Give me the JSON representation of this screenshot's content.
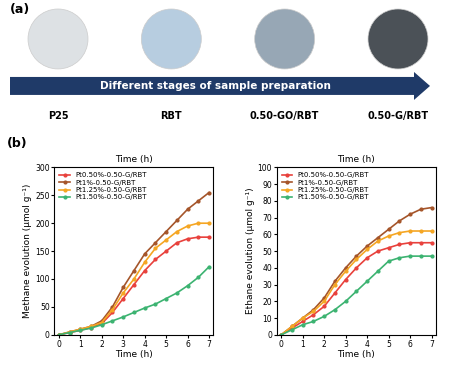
{
  "panel_labels": [
    "(a)",
    "(b)"
  ],
  "samples": {
    "arrow_text": "Different stages of sample preparation",
    "items": [
      {
        "label": "P25",
        "color": "#dde1e4"
      },
      {
        "label": "RBT",
        "color": "#b7cde0"
      },
      {
        "label": "0.50-GO/RBT",
        "color": "#97a7b5"
      },
      {
        "label": "0.50-G/RBT",
        "color": "#4b5157"
      }
    ]
  },
  "chart_data": [
    {
      "type": "line",
      "title": "Time (h)",
      "x_label": "Time (h)",
      "y_label": "Methane evolution (μmol g⁻¹)",
      "x": [
        0,
        0.5,
        1,
        1.5,
        2,
        2.5,
        3,
        3.5,
        4,
        4.5,
        5,
        5.5,
        6,
        6.5,
        7
      ],
      "xlim": [
        -0.2,
        7.2
      ],
      "xticks": [
        0,
        1,
        2,
        3,
        4,
        5,
        6,
        7
      ],
      "ylim": [
        0,
        300
      ],
      "yticks": [
        0,
        50,
        100,
        150,
        200,
        250,
        300
      ],
      "legend": "upper left",
      "marker": "o",
      "series": [
        {
          "name": "Pt0.50%-0.50-G/RBT",
          "color": "#e8413c",
          "values": [
            0,
            4,
            8,
            13,
            20,
            40,
            65,
            90,
            115,
            135,
            150,
            165,
            172,
            175,
            175
          ]
        },
        {
          "name": "Pt1%-0.50-G/RBT",
          "color": "#a5552a",
          "values": [
            0,
            5,
            10,
            15,
            25,
            50,
            85,
            115,
            145,
            165,
            185,
            205,
            225,
            240,
            255
          ]
        },
        {
          "name": "Pt1.25%-0.50-G/RBT",
          "color": "#f5a623",
          "values": [
            0,
            5,
            10,
            15,
            22,
            45,
            75,
            100,
            130,
            155,
            170,
            185,
            195,
            200,
            200
          ]
        },
        {
          "name": "Pt1.50%-0.50-G/RBT",
          "color": "#3cb371",
          "values": [
            0,
            4,
            8,
            12,
            18,
            25,
            32,
            40,
            48,
            55,
            65,
            75,
            88,
            103,
            122
          ]
        }
      ]
    },
    {
      "type": "line",
      "title": "Time (h)",
      "x_label": "Time (h)",
      "y_label": "Ethane evolution (μmol g⁻¹)",
      "x": [
        0,
        0.5,
        1,
        1.5,
        2,
        2.5,
        3,
        3.5,
        4,
        4.5,
        5,
        5.5,
        6,
        6.5,
        7
      ],
      "xlim": [
        -0.2,
        7.2
      ],
      "xticks": [
        0,
        1,
        2,
        3,
        4,
        5,
        6,
        7
      ],
      "ylim": [
        0,
        100
      ],
      "yticks": [
        0,
        10,
        20,
        30,
        40,
        50,
        60,
        70,
        80,
        90,
        100
      ],
      "legend": "upper left",
      "marker": "o",
      "series": [
        {
          "name": "Pt0.50%-0.50-G/RBT",
          "color": "#e8413c",
          "values": [
            0,
            4,
            8,
            12,
            17,
            25,
            33,
            40,
            46,
            50,
            52,
            54,
            55,
            55,
            55
          ]
        },
        {
          "name": "Pt1%-0.50-G/RBT",
          "color": "#a5552a",
          "values": [
            0,
            5,
            10,
            15,
            22,
            32,
            40,
            47,
            53,
            58,
            63,
            68,
            72,
            75,
            76
          ]
        },
        {
          "name": "Pt1.25%-0.50-G/RBT",
          "color": "#f5a623",
          "values": [
            0,
            5,
            10,
            14,
            20,
            30,
            38,
            45,
            51,
            56,
            59,
            61,
            62,
            62,
            62
          ]
        },
        {
          "name": "Pt1.50%-0.50-G/RBT",
          "color": "#3cb371",
          "values": [
            0,
            3,
            6,
            8,
            11,
            15,
            20,
            26,
            32,
            38,
            44,
            46,
            47,
            47,
            47
          ]
        }
      ]
    }
  ]
}
